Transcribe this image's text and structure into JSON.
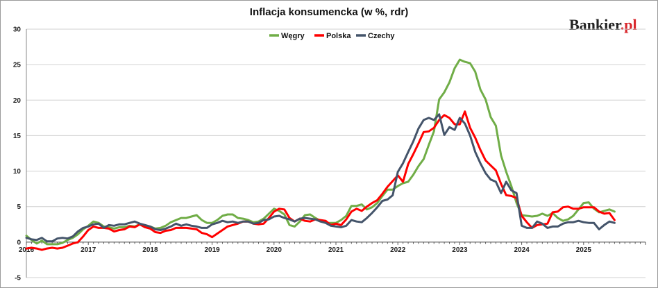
{
  "logo": {
    "text": "Bankier",
    "suffix": ".pl",
    "dot_color": "#d9262b"
  },
  "chart_data": {
    "type": "line",
    "title": "Inflacja konsumencka (w %, rdr)",
    "xlabel": "",
    "ylabel": "",
    "x_ticks": [
      "2016",
      "2017",
      "2018",
      "2019",
      "2020",
      "2021",
      "2022",
      "2023",
      "2024",
      "2025"
    ],
    "ylim": [
      -5,
      30
    ],
    "y_ticks": [
      -5,
      0,
      5,
      10,
      15,
      20,
      25,
      30
    ],
    "grid": "horizontal",
    "legend_position": "top-center",
    "x_start": "2016-01",
    "x_end": "2025-07",
    "series": [
      {
        "name": "Węgry",
        "color": "#70ad47",
        "values": [
          0.9,
          0.3,
          -0.2,
          0.2,
          -0.3,
          -0.3,
          -0.3,
          -0.1,
          0.3,
          0.6,
          1.1,
          1.8,
          2.3,
          2.9,
          2.7,
          2.2,
          2.1,
          1.9,
          2.1,
          2.1,
          2.3,
          2.2,
          2.5,
          2.1,
          2.2,
          1.9,
          2.0,
          2.3,
          2.8,
          3.1,
          3.4,
          3.4,
          3.6,
          3.8,
          3.1,
          2.7,
          2.7,
          3.1,
          3.7,
          3.9,
          3.9,
          3.4,
          3.3,
          3.1,
          2.8,
          2.9,
          3.3,
          4.0,
          4.7,
          4.4,
          3.9,
          2.4,
          2.2,
          2.9,
          3.8,
          3.9,
          3.4,
          3.0,
          2.7,
          2.7,
          2.7,
          3.1,
          3.7,
          5.1,
          5.1,
          5.3,
          4.6,
          4.9,
          5.5,
          6.5,
          7.4,
          7.4,
          7.9,
          8.3,
          8.5,
          9.5,
          10.7,
          11.7,
          13.7,
          15.6,
          20.1,
          21.1,
          22.5,
          24.5,
          25.7,
          25.4,
          25.2,
          24.0,
          21.5,
          20.1,
          17.6,
          16.4,
          12.2,
          9.9,
          7.9,
          5.5,
          3.8,
          3.7,
          3.6,
          3.7,
          4.0,
          3.7,
          4.1,
          3.4,
          3.0,
          3.2,
          3.7,
          4.6,
          5.5,
          5.6,
          4.7,
          4.2,
          4.4,
          4.6,
          4.3
        ]
      },
      {
        "name": "Polska",
        "color": "#ff0000",
        "values": [
          -0.9,
          -0.8,
          -0.9,
          -1.1,
          -0.9,
          -0.8,
          -0.9,
          -0.8,
          -0.5,
          -0.2,
          0.0,
          0.8,
          1.7,
          2.2,
          2.0,
          2.0,
          1.9,
          1.5,
          1.7,
          1.8,
          2.2,
          2.1,
          2.5,
          2.1,
          1.9,
          1.4,
          1.3,
          1.6,
          1.7,
          2.0,
          2.0,
          2.0,
          1.9,
          1.8,
          1.3,
          1.1,
          0.7,
          1.2,
          1.7,
          2.2,
          2.4,
          2.6,
          2.9,
          2.9,
          2.6,
          2.5,
          2.6,
          3.4,
          4.3,
          4.7,
          4.6,
          3.4,
          2.9,
          3.3,
          3.0,
          2.9,
          3.2,
          3.1,
          3.0,
          2.4,
          2.6,
          2.4,
          3.2,
          4.3,
          4.7,
          4.4,
          5.0,
          5.5,
          5.9,
          6.8,
          7.8,
          8.6,
          9.4,
          8.5,
          11.0,
          12.4,
          13.9,
          15.5,
          15.6,
          16.1,
          17.2,
          17.9,
          17.5,
          16.6,
          16.6,
          18.4,
          16.1,
          14.7,
          13.0,
          11.5,
          10.8,
          10.1,
          8.2,
          6.6,
          6.5,
          6.2,
          3.7,
          2.8,
          2.0,
          2.4,
          2.5,
          2.6,
          4.2,
          4.3,
          4.9,
          5.0,
          4.7,
          4.7,
          4.9,
          4.9,
          4.9,
          4.3,
          4.0,
          4.1,
          3.1
        ]
      },
      {
        "name": "Czechy",
        "color": "#44546a",
        "values": [
          0.6,
          0.4,
          0.3,
          0.6,
          0.1,
          0.1,
          0.5,
          0.6,
          0.5,
          0.8,
          1.5,
          2.0,
          2.2,
          2.5,
          2.6,
          2.0,
          2.4,
          2.3,
          2.5,
          2.5,
          2.7,
          2.9,
          2.6,
          2.4,
          2.2,
          1.8,
          1.7,
          1.9,
          2.2,
          2.6,
          2.3,
          2.5,
          2.3,
          2.2,
          2.0,
          2.0,
          2.5,
          2.7,
          3.0,
          2.8,
          2.9,
          2.7,
          2.9,
          2.9,
          2.6,
          2.7,
          3.1,
          3.2,
          3.6,
          3.7,
          3.4,
          3.2,
          2.9,
          3.3,
          3.4,
          3.3,
          3.2,
          2.9,
          2.7,
          2.3,
          2.2,
          2.1,
          2.3,
          3.1,
          2.9,
          2.8,
          3.4,
          4.1,
          4.9,
          5.8,
          6.0,
          6.6,
          9.9,
          11.1,
          12.7,
          14.2,
          16.0,
          17.2,
          17.5,
          17.2,
          18.0,
          15.1,
          16.2,
          15.8,
          17.5,
          16.7,
          15.0,
          12.7,
          11.1,
          9.7,
          8.8,
          8.5,
          6.9,
          8.5,
          7.3,
          6.9,
          2.3,
          2.0,
          2.0,
          2.9,
          2.6,
          2.0,
          2.2,
          2.2,
          2.6,
          2.8,
          2.8,
          3.0,
          2.8,
          2.7,
          2.7,
          1.8,
          2.4,
          2.9,
          2.7
        ]
      }
    ]
  }
}
